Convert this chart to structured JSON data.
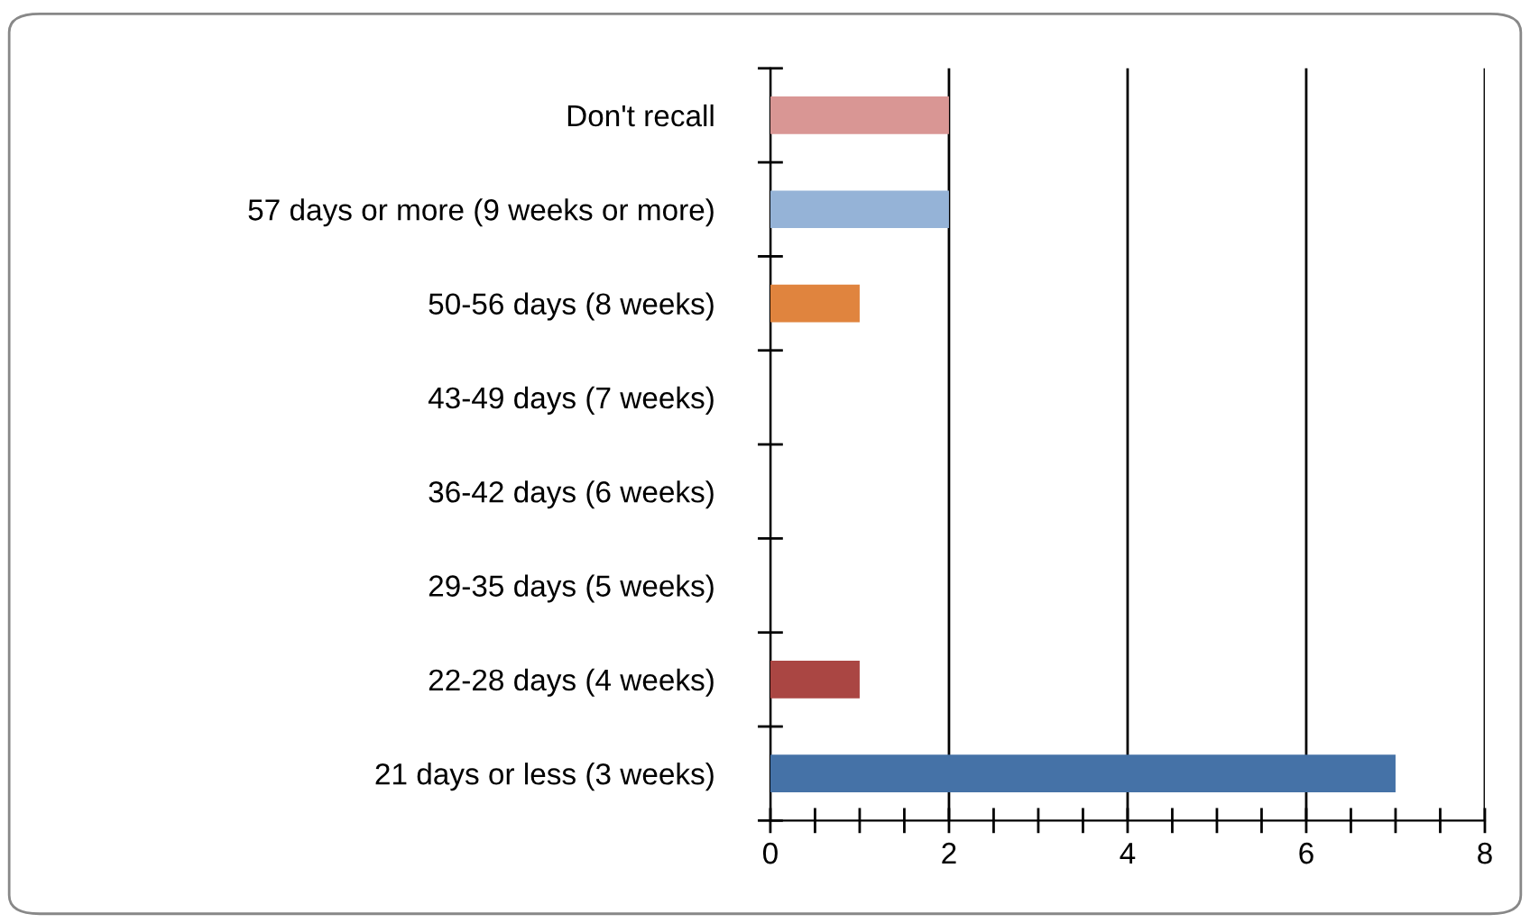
{
  "chart_data": {
    "type": "bar",
    "orientation": "horizontal",
    "categories": [
      "Don't recall",
      "57 days or more (9 weeks or more)",
      "50-56 days (8 weeks)",
      "43-49 days (7 weeks)",
      "36-42 days (6 weeks)",
      "29-35 days (5 weeks)",
      "22-28 days (4 weeks)",
      "21 days or less (3 weeks)"
    ],
    "values": [
      2,
      2,
      1,
      0,
      0,
      0,
      1,
      7
    ],
    "colors": [
      "#d99694",
      "#95b3d7",
      "#e0843e",
      "#9bbb59",
      "#8064a2",
      "#4bacc6",
      "#aa4643",
      "#4572a7"
    ],
    "xlim": [
      0,
      8
    ],
    "xticks": [
      0,
      2,
      4,
      6,
      8
    ],
    "grid": "x"
  }
}
